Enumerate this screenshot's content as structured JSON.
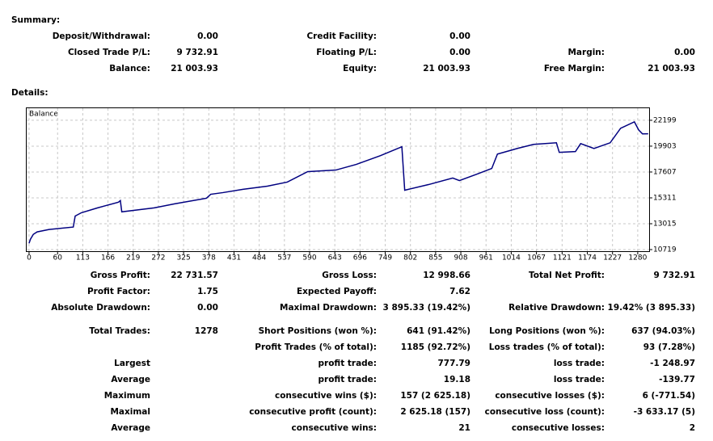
{
  "summary": {
    "title": "Summary:",
    "rows": [
      [
        {
          "label": "Deposit/Withdrawal:",
          "value": "0.00"
        },
        {
          "label": "Credit Facility:",
          "value": "0.00"
        },
        null
      ],
      [
        {
          "label": "Closed Trade P/L:",
          "value": "9 732.91"
        },
        {
          "label": "Floating P/L:",
          "value": "0.00"
        },
        {
          "label": "Margin:",
          "value": "0.00"
        }
      ],
      [
        {
          "label": "Balance:",
          "value": "21 003.93"
        },
        {
          "label": "Equity:",
          "value": "21 003.93"
        },
        {
          "label": "Free Margin:",
          "value": "21 003.93"
        }
      ]
    ]
  },
  "details": {
    "title": "Details:"
  },
  "chart_data": {
    "type": "line",
    "title": "Balance",
    "x": [
      0,
      3,
      9,
      17,
      42,
      93,
      97,
      110,
      144,
      188,
      192,
      195,
      263,
      306,
      373,
      382,
      408,
      450,
      501,
      543,
      586,
      645,
      688,
      739,
      784,
      790,
      840,
      891,
      905,
      942,
      973,
      985,
      1027,
      1061,
      1109,
      1115,
      1149,
      1160,
      1188,
      1222,
      1244,
      1273,
      1282,
      1290,
      1302
    ],
    "series": [
      {
        "color": "#000080",
        "values": [
          11271,
          11647,
          12070,
          12290,
          12500,
          12720,
          13700,
          13990,
          14420,
          14930,
          15070,
          14070,
          14420,
          14780,
          15280,
          15630,
          15780,
          16070,
          16350,
          16710,
          17640,
          17780,
          18280,
          19060,
          19850,
          15990,
          16490,
          17070,
          16850,
          17420,
          17920,
          19200,
          19700,
          20060,
          20200,
          19350,
          19420,
          20130,
          19700,
          20200,
          21490,
          22060,
          21340,
          20990,
          21004
        ]
      }
    ],
    "xlim": [
      -5,
      1304
    ],
    "ylim": [
      10576,
      23270
    ],
    "xticks": [
      0,
      60,
      113,
      166,
      219,
      272,
      325,
      378,
      431,
      484,
      537,
      590,
      643,
      696,
      749,
      802,
      855,
      908,
      961,
      1014,
      1067,
      1121,
      1174,
      1227,
      1280
    ],
    "yticks": [
      10719,
      13015,
      15311,
      17607,
      19903,
      22199
    ],
    "grid": true
  },
  "stats": {
    "rows": [
      [
        {
          "label": "Gross Profit:",
          "value": "22 731.57"
        },
        {
          "label": "Gross Loss:",
          "value": "12 998.66"
        },
        {
          "label": "Total Net Profit:",
          "value": "9 732.91"
        }
      ],
      [
        {
          "label": "Profit Factor:",
          "value": "1.75"
        },
        {
          "label": "Expected Payoff:",
          "value": "7.62"
        },
        null
      ],
      [
        {
          "label": "Absolute Drawdown:",
          "value": "0.00"
        },
        {
          "label": "Maximal Drawdown:",
          "value": "3 895.33 (19.42%)"
        },
        {
          "label": "Relative Drawdown:",
          "value": "19.42% (3 895.33)"
        }
      ],
      [
        {
          "label": "Total Trades:",
          "value": "1278"
        },
        {
          "label": "Short Positions (won %):",
          "value": "641 (91.42%)"
        },
        {
          "label": "Long Positions (won %):",
          "value": "637 (94.03%)"
        }
      ],
      [
        null,
        {
          "label": "Profit Trades (% of total):",
          "value": "1185 (92.72%)"
        },
        {
          "label": "Loss trades (% of total):",
          "value": "93 (7.28%)"
        }
      ],
      [
        {
          "label": "Largest"
        },
        {
          "label": "profit trade:",
          "value": "777.79"
        },
        {
          "label": "loss trade:",
          "value": "-1 248.97"
        }
      ],
      [
        {
          "label": "Average"
        },
        {
          "label": "profit trade:",
          "value": "19.18"
        },
        {
          "label": "loss trade:",
          "value": "-139.77"
        }
      ],
      [
        {
          "label": "Maximum"
        },
        {
          "label": "consecutive wins ($):",
          "value": "157 (2 625.18)"
        },
        {
          "label": "consecutive losses ($):",
          "value": "6 (-771.54)"
        }
      ],
      [
        {
          "label": "Maximal"
        },
        {
          "label": "consecutive profit (count):",
          "value": "2 625.18 (157)"
        },
        {
          "label": "consecutive loss (count):",
          "value": "-3 633.17 (5)"
        }
      ],
      [
        {
          "label": "Average"
        },
        {
          "label": "consecutive wins:",
          "value": "21"
        },
        {
          "label": "consecutive losses:",
          "value": "2"
        }
      ]
    ]
  }
}
